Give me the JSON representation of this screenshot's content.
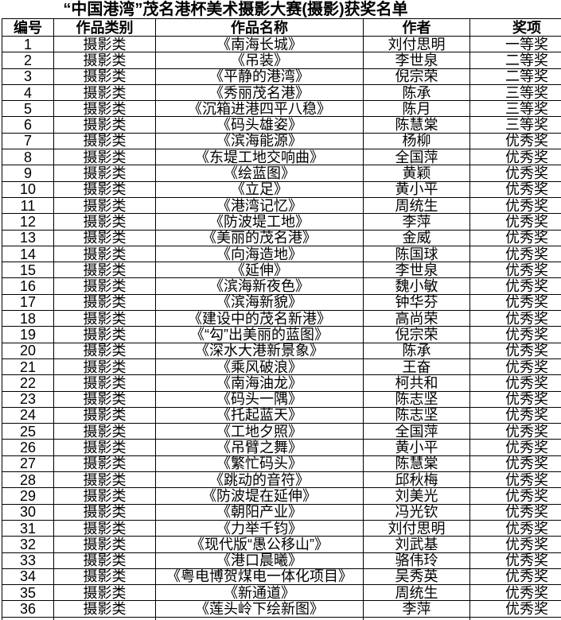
{
  "title": "“中国港湾”茂名港杯美术摄影大赛(摄影)获奖名单",
  "table": {
    "headers": [
      "编号",
      "作品类别",
      "作品名称",
      "作者",
      "奖项"
    ],
    "column_keys": [
      "number",
      "category",
      "work-title",
      "author",
      "award"
    ],
    "rows": [
      [
        "1",
        "摄影类",
        "《南海长城》",
        "刘付思明",
        "一等奖"
      ],
      [
        "2",
        "摄影类",
        "《吊装》",
        "李世泉",
        "二等奖"
      ],
      [
        "3",
        "摄影类",
        "《平静的港湾》",
        "倪宗荣",
        "二等奖"
      ],
      [
        "4",
        "摄影类",
        "《秀丽茂名港》",
        "陈承",
        "三等奖"
      ],
      [
        "5",
        "摄影类",
        "《沉箱进港四平八稳》",
        "陈月",
        "三等奖"
      ],
      [
        "6",
        "摄影类",
        "《码头雄姿》",
        "陈慧棠",
        "三等奖"
      ],
      [
        "7",
        "摄影类",
        "《滨海能源》",
        "杨柳",
        "优秀奖"
      ],
      [
        "8",
        "摄影类",
        "《东堤工地交响曲》",
        "全国萍",
        "优秀奖"
      ],
      [
        "9",
        "摄影类",
        "《绘蓝图》",
        "黄颖",
        "优秀奖"
      ],
      [
        "10",
        "摄影类",
        "《立足》",
        "黄小平",
        "优秀奖"
      ],
      [
        "11",
        "摄影类",
        "《港湾记忆》",
        "周统生",
        "优秀奖"
      ],
      [
        "12",
        "摄影类",
        "《防波堤工地》",
        "李萍",
        "优秀奖"
      ],
      [
        "13",
        "摄影类",
        "《美丽的茂名港》",
        "金威",
        "优秀奖"
      ],
      [
        "14",
        "摄影类",
        "《向海造地》",
        "陈国球",
        "优秀奖"
      ],
      [
        "15",
        "摄影类",
        "《延伸》",
        "李世泉",
        "优秀奖"
      ],
      [
        "16",
        "摄影类",
        "《滨海新夜色》",
        "魏小敏",
        "优秀奖"
      ],
      [
        "17",
        "摄影类",
        "《滨海新貌》",
        "钟华芬",
        "优秀奖"
      ],
      [
        "18",
        "摄影类",
        "《建设中的茂名新港》",
        "高尚荣",
        "优秀奖"
      ],
      [
        "19",
        "摄影类",
        "《“勾”出美丽的蓝图》",
        "倪宗荣",
        "优秀奖"
      ],
      [
        "20",
        "摄影类",
        "《深水大港新景象》",
        "陈承",
        "优秀奖"
      ],
      [
        "21",
        "摄影类",
        "《乘风破浪》",
        "王奋",
        "优秀奖"
      ],
      [
        "22",
        "摄影类",
        "《南海油龙》",
        "柯共和",
        "优秀奖"
      ],
      [
        "23",
        "摄影类",
        "《码头一隅》",
        "陈志坚",
        "优秀奖"
      ],
      [
        "24",
        "摄影类",
        "《托起蓝天》",
        "陈志坚",
        "优秀奖"
      ],
      [
        "25",
        "摄影类",
        "《工地夕照》",
        "全国萍",
        "优秀奖"
      ],
      [
        "26",
        "摄影类",
        "《吊臂之舞》",
        "黄小平",
        "优秀奖"
      ],
      [
        "27",
        "摄影类",
        "《繁忙码头》",
        "陈慧棠",
        "优秀奖"
      ],
      [
        "28",
        "摄影类",
        "《跳动的音符》",
        "邱秋梅",
        "优秀奖"
      ],
      [
        "29",
        "摄影类",
        "《防波堤在延伸》",
        "刘美光",
        "优秀奖"
      ],
      [
        "30",
        "摄影类",
        "《朝阳产业》",
        "冯光钦",
        "优秀奖"
      ],
      [
        "31",
        "摄影类",
        "《力举千钧》",
        "刘付思明",
        "优秀奖"
      ],
      [
        "32",
        "摄影类",
        "《现代版“愚公移山”》",
        "刘武基",
        "优秀奖"
      ],
      [
        "33",
        "摄影类",
        "《港口晨曦》",
        "骆伟玲",
        "优秀奖"
      ],
      [
        "34",
        "摄影类",
        "《粤电博贺煤电一体化项目》",
        "吴秀英",
        "优秀奖"
      ],
      [
        "35",
        "摄影类",
        "《新通道》",
        "周统生",
        "优秀奖"
      ],
      [
        "36",
        "摄影类",
        "《莲头岭下绘新图》",
        "李萍",
        "优秀奖"
      ]
    ]
  }
}
